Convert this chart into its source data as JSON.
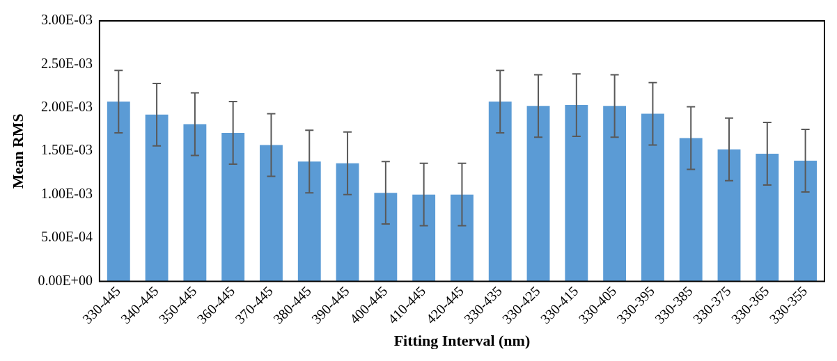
{
  "chart_data": {
    "type": "bar",
    "xlabel": "Fitting Interval (nm)",
    "ylabel": "Mean RMS",
    "categories": [
      "330-445",
      "340-445",
      "350-445",
      "360-445",
      "370-445",
      "380-445",
      "390-445",
      "400-445",
      "410-445",
      "420-445",
      "330-435",
      "330-425",
      "330-415",
      "330-405",
      "330-395",
      "330-385",
      "330-375",
      "330-365",
      "330-355"
    ],
    "values": [
      0.00207,
      0.00192,
      0.00181,
      0.00171,
      0.00157,
      0.00138,
      0.00136,
      0.00102,
      0.001,
      0.001,
      0.00207,
      0.00202,
      0.00203,
      0.00202,
      0.00193,
      0.00165,
      0.00152,
      0.00147,
      0.00139
    ],
    "errors": [
      0.00036,
      0.00036,
      0.00036,
      0.00036,
      0.00036,
      0.00036,
      0.00036,
      0.00036,
      0.00036,
      0.00036,
      0.00036,
      0.00036,
      0.00036,
      0.00036,
      0.00036,
      0.00036,
      0.00036,
      0.00036,
      0.00036
    ],
    "color": "#5b9bd5",
    "ylim": [
      0,
      0.003
    ],
    "yticks": [
      {
        "value": 0,
        "label": "0.00E+00"
      },
      {
        "value": 0.0005,
        "label": "5.00E-04"
      },
      {
        "value": 0.001,
        "label": "1.00E-03"
      },
      {
        "value": 0.0015,
        "label": "1.50E-03"
      },
      {
        "value": 0.002,
        "label": "2.00E-03"
      },
      {
        "value": 0.0025,
        "label": "2.50E-03"
      },
      {
        "value": 0.003,
        "label": "3.00E-03"
      }
    ],
    "grid": false,
    "legend": false
  }
}
